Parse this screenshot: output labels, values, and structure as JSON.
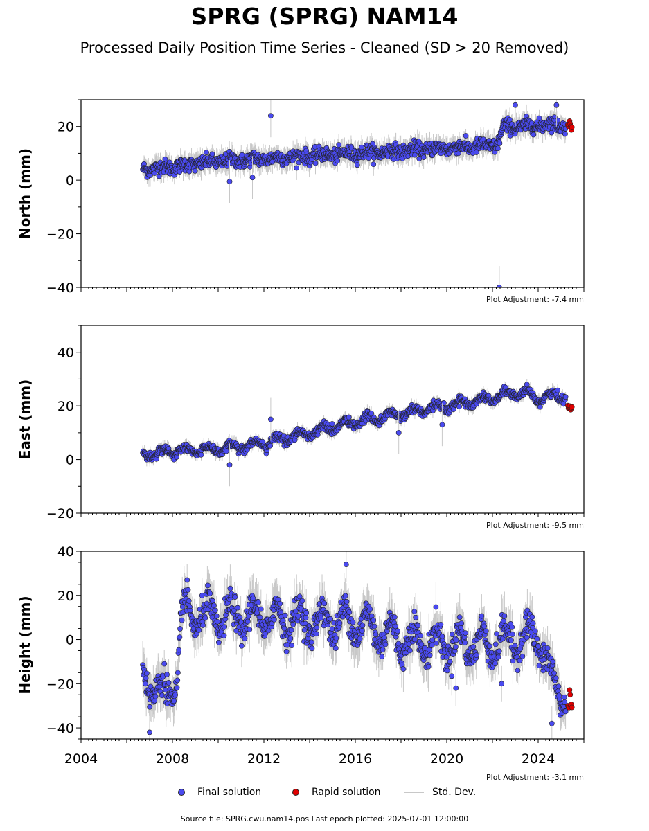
{
  "title": "SPRG (SPRG) NAM14",
  "subtitle": "Processed Daily Position Time Series - Cleaned (SD > 20 Removed)",
  "footer": "Source file: SPRG.cwu.nam14.pos  Last epoch plotted: 2025-07-01 12:00:00",
  "legend": {
    "final": "Final solution",
    "rapid": "Rapid solution",
    "std": "Std. Dev."
  },
  "colors": {
    "final": "#4a4af0",
    "rapid": "#e00000",
    "std": "#c8c8c8",
    "edge": "#222222"
  },
  "chart_data": [
    {
      "type": "scatter",
      "ylabel": "North (mm)",
      "ylim": [
        -40,
        30
      ],
      "xlim": [
        2004,
        2026
      ],
      "ymajor": [
        -40,
        -20,
        0,
        20
      ],
      "yminor_step": 10,
      "adjustment": "Plot Adjustment: -7.4 mm",
      "series": [
        {
          "name": "Final solution",
          "x": [
            2006.7,
            2008,
            2010,
            2012,
            2014,
            2016,
            2018,
            2020,
            2022.2,
            2022.5,
            2023.5,
            2024.5,
            2025.2
          ],
          "y": [
            4,
            5,
            7,
            8,
            9,
            10,
            11,
            12,
            13,
            20,
            20,
            21,
            20
          ]
        },
        {
          "name": "Rapid solution",
          "x": [
            2025.3,
            2025.5
          ],
          "y": [
            21,
            20
          ]
        }
      ],
      "outliers": [
        [
          2012.3,
          24
        ],
        [
          2010.5,
          -0.5
        ],
        [
          2011.5,
          1
        ],
        [
          2022.3,
          -40
        ],
        [
          2023.0,
          28
        ],
        [
          2024.8,
          28
        ]
      ],
      "noise": 2.2,
      "seasonal": 0.6
    },
    {
      "type": "scatter",
      "ylabel": "East (mm)",
      "ylim": [
        -20,
        50
      ],
      "xlim": [
        2004,
        2026
      ],
      "ymajor": [
        -20,
        0,
        20,
        40
      ],
      "yminor_step": 10,
      "adjustment": "Plot Adjustment: -9.5 mm",
      "series": [
        {
          "name": "Final solution",
          "x": [
            2006.7,
            2008,
            2010,
            2012,
            2014,
            2016,
            2018,
            2020,
            2022,
            2023,
            2024,
            2025.2
          ],
          "y": [
            2,
            3,
            4,
            6,
            10,
            14,
            17,
            20,
            23,
            25,
            23,
            24
          ]
        },
        {
          "name": "Rapid solution",
          "x": [
            2025.3,
            2025.5
          ],
          "y": [
            20,
            19
          ]
        }
      ],
      "outliers": [
        [
          2012.3,
          15
        ],
        [
          2010.5,
          -2
        ],
        [
          2019.8,
          13
        ],
        [
          2017.9,
          10
        ]
      ],
      "noise": 1.3,
      "seasonal": 1.5
    },
    {
      "type": "scatter",
      "ylabel": "Height (mm)",
      "ylim": [
        -45,
        40
      ],
      "xlim": [
        2004,
        2026
      ],
      "ymajor": [
        -40,
        -20,
        0,
        20,
        40
      ],
      "yminor_step": 10,
      "adjustment": "Plot Adjustment: -3.1 mm",
      "xticks": [
        2004,
        2008,
        2012,
        2016,
        2020,
        2024
      ],
      "series": [
        {
          "name": "Final solution",
          "x": [
            2006.7,
            2007.5,
            2008.2,
            2008.4,
            2010,
            2012,
            2014,
            2016,
            2018,
            2020,
            2022,
            2024,
            2024.6,
            2025.2
          ],
          "y": [
            -15,
            -25,
            -20,
            12,
            10,
            10,
            8,
            8,
            0,
            -2,
            -2,
            2,
            -20,
            -25
          ]
        },
        {
          "name": "Rapid solution",
          "x": [
            2025.3,
            2025.5
          ],
          "y": [
            -25,
            -28
          ]
        }
      ],
      "outliers": [
        [
          2007.0,
          -42
        ],
        [
          2015.6,
          34
        ],
        [
          2020.4,
          -22
        ],
        [
          2022.4,
          -20
        ],
        [
          2024.6,
          -38
        ]
      ],
      "noise": 5.5,
      "seasonal": 7
    }
  ]
}
